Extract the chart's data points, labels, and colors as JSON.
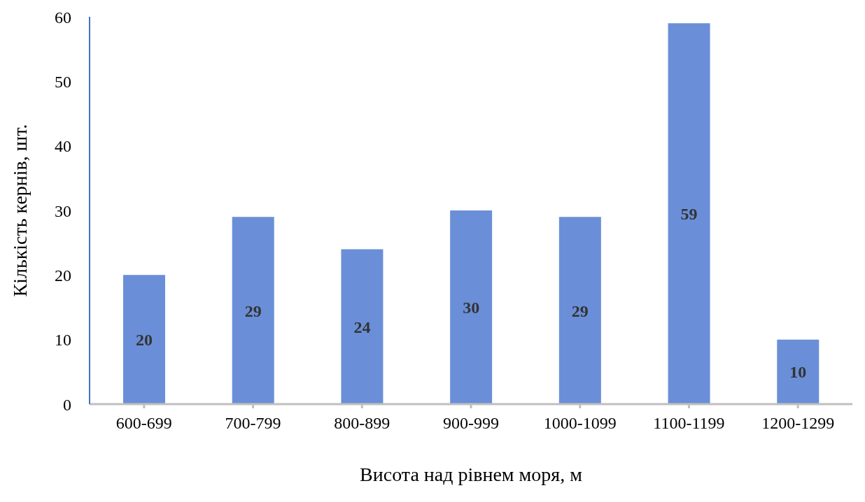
{
  "chart_data": {
    "type": "bar",
    "xlabel": "Висота над рівнем моря, м",
    "ylabel": "Кількість кернів, шт.",
    "categories": [
      "600-699",
      "700-799",
      "800-899",
      "900-999",
      "1000-1099",
      "1100-1199",
      "1200-1299"
    ],
    "values": [
      20,
      29,
      24,
      30,
      29,
      59,
      10
    ],
    "color": "#6a8fd8",
    "ylim": [
      0,
      60
    ],
    "yticks": [
      0,
      10,
      20,
      30,
      40,
      50,
      60
    ],
    "grid": false,
    "data_labels": true
  }
}
